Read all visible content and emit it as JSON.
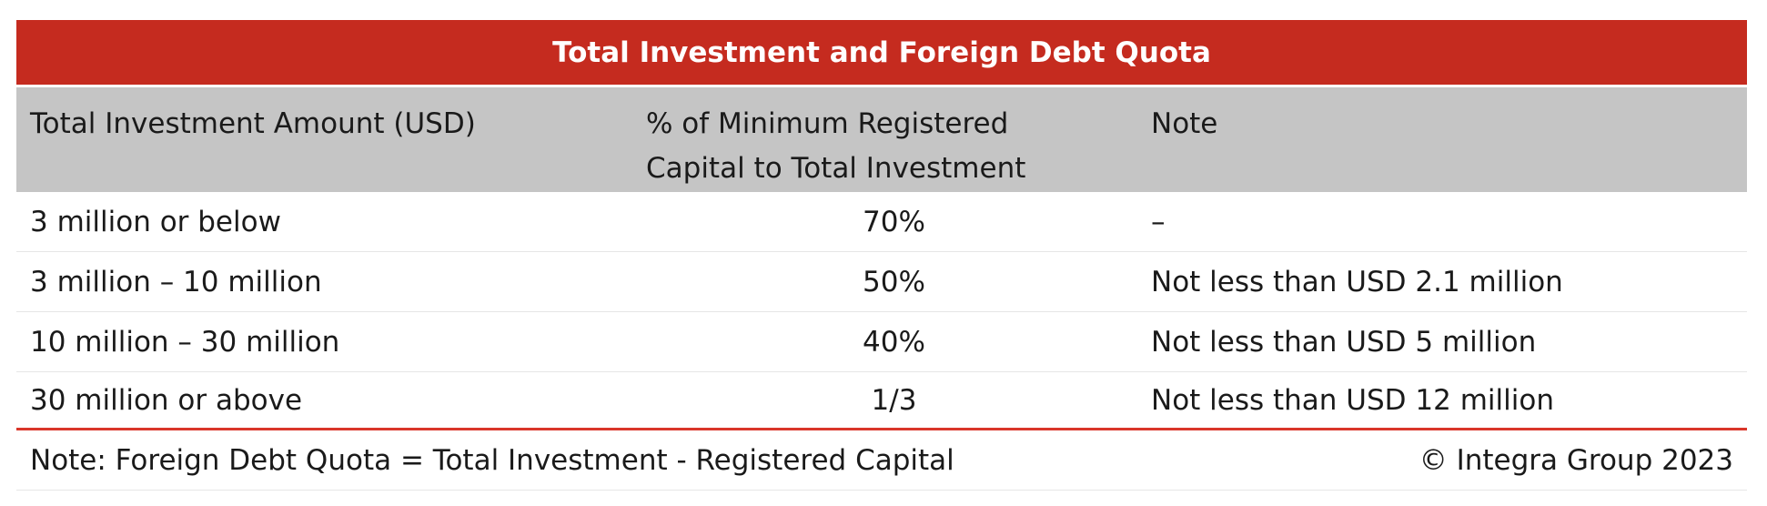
{
  "table": {
    "title": "Total Investment and Foreign Debt Quota",
    "headers": {
      "amount": "Total Investment Amount (USD)",
      "percent_line1": "% of Minimum Registered",
      "percent_line2": "Capital to Total Investment",
      "note": "Note"
    },
    "rows": [
      {
        "amount": "3 million or below",
        "percent": "70%",
        "note": "–"
      },
      {
        "amount": "3 million – 10 million",
        "percent": "50%",
        "note": "Not less than USD 2.1 million"
      },
      {
        "amount": "10 million – 30 million",
        "percent": "40%",
        "note": "Not less than USD 5 million"
      },
      {
        "amount": "30 million or above",
        "percent": "1/3",
        "note": "Not less than USD 12 million"
      }
    ],
    "footer": {
      "note": "Note: Foreign Debt Quota = Total Investment - Registered Capital",
      "copyright": "© Integra Group 2023"
    },
    "colors": {
      "title_bg": "#c52b1f",
      "header_bg": "#c5c5c5",
      "divider": "#d9362a"
    }
  }
}
